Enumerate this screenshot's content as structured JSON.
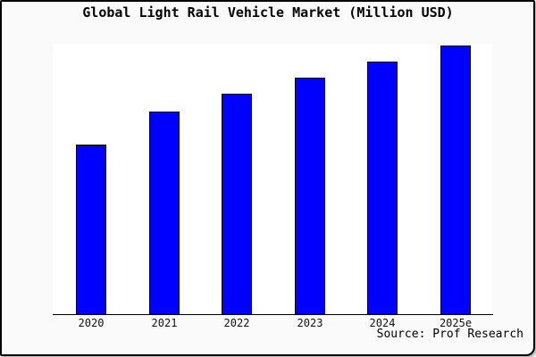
{
  "title": "Global Light Rail Vehicle Market (Million USD)",
  "source": "Source: Prof Research",
  "colors": {
    "bar_fill": "#0000ff",
    "bar_edge": "#000000",
    "figure_bg": "#fafafa",
    "plot_bg": "#ffffff",
    "axis": "#000000",
    "frame_border": "#000000"
  },
  "chart_data": {
    "type": "bar",
    "title": "Global Light Rail Vehicle Market (Million USD)",
    "categories": [
      "2020",
      "2021",
      "2022",
      "2023",
      "2024",
      "2025e"
    ],
    "values": [
      190,
      227,
      247,
      265,
      283,
      301
    ],
    "units": "relative height (no y-axis scale shown in figure)",
    "xlabel": "",
    "ylabel": "",
    "ylim": [
      0,
      303
    ],
    "grid": false,
    "legend": null,
    "annotations": [
      "Source: Prof Research"
    ]
  }
}
